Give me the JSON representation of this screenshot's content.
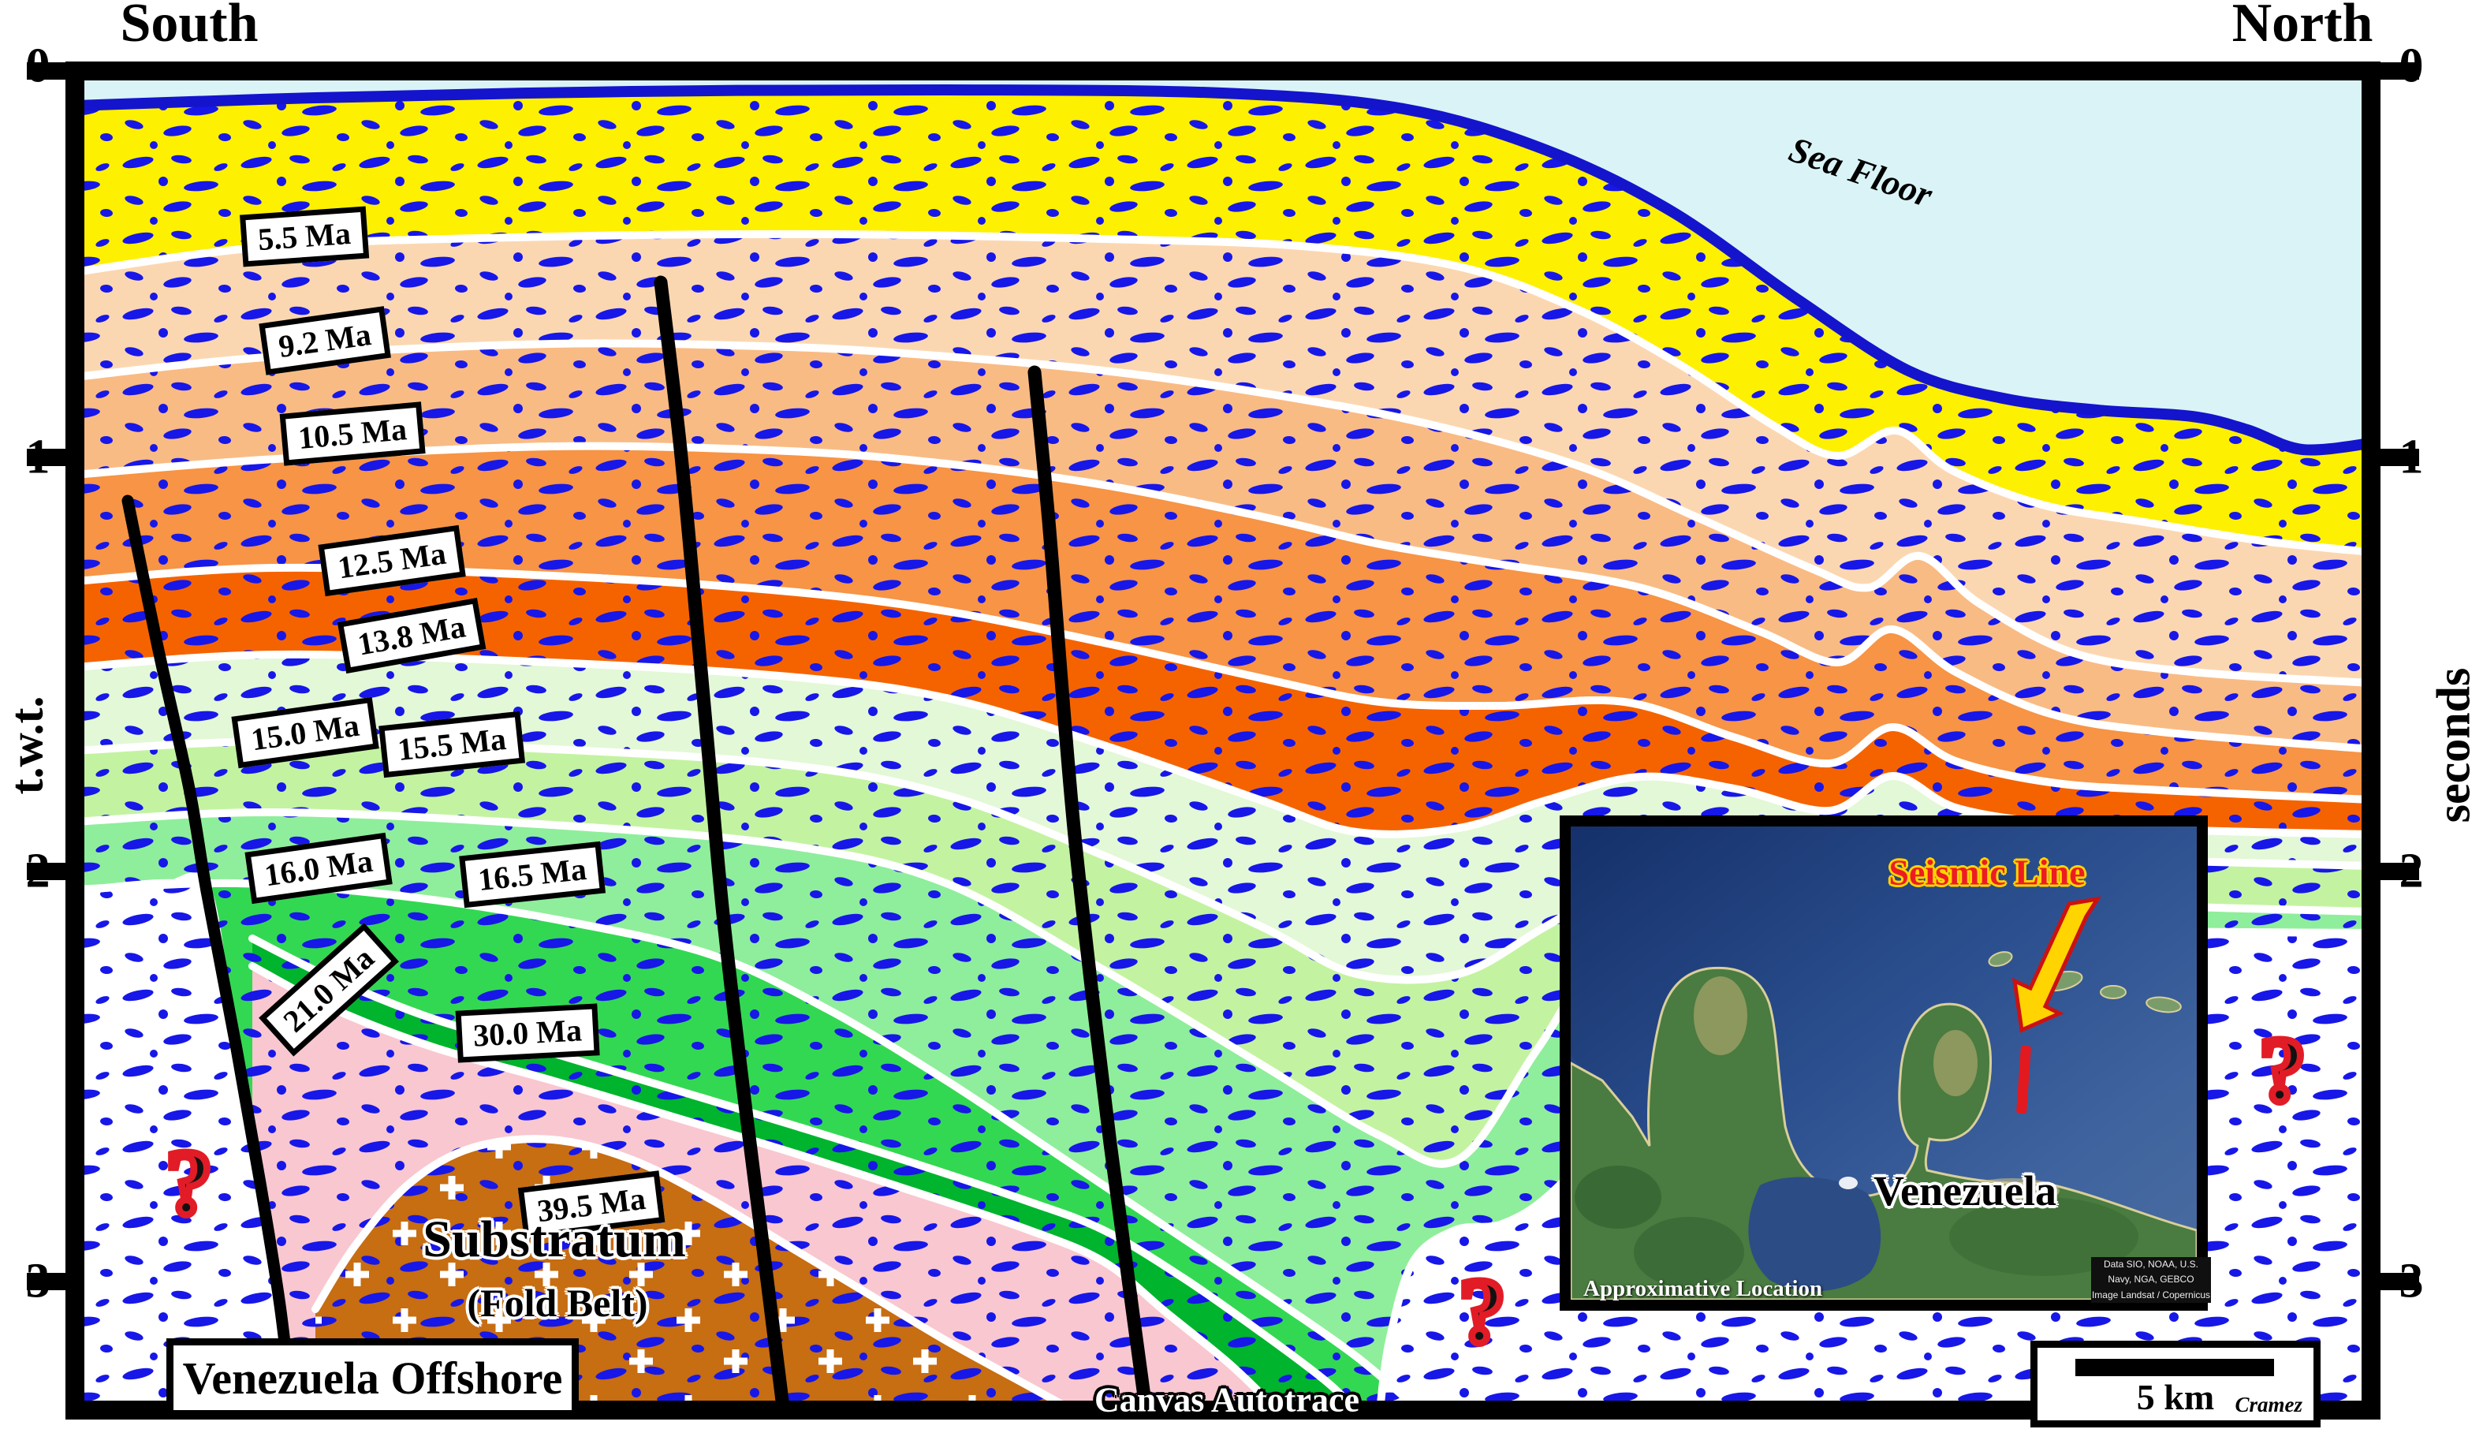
{
  "titles": {
    "left": "South",
    "right": "North"
  },
  "axis": {
    "ticks": [
      "0",
      "1",
      "2",
      "3"
    ],
    "left_label": "t.w.t.",
    "right_label": "seconds"
  },
  "sea_floor_label": "Sea Floor",
  "horizons": [
    {
      "text": "5.5 Ma"
    },
    {
      "text": "9.2 Ma"
    },
    {
      "text": "10.5 Ma"
    },
    {
      "text": "12.5 Ma"
    },
    {
      "text": "13.8 Ma"
    },
    {
      "text": "15.0 Ma"
    },
    {
      "text": "15.5 Ma"
    },
    {
      "text": "16.0 Ma"
    },
    {
      "text": "16.5 Ma"
    },
    {
      "text": "21.0 Ma"
    },
    {
      "text": "30.0 Ma"
    },
    {
      "text": "39.5 Ma"
    }
  ],
  "substratum": {
    "line1": "Substratum",
    "line2": "(Fold Belt)"
  },
  "region_label": "Venezuela Offshore",
  "watermark": "Canvas Autotrace",
  "question_mark": "?",
  "scalebar": {
    "distance": "5 km",
    "credit": "Cramez"
  },
  "inset": {
    "seismic_line": "Seismic Line",
    "country": "Venezuela",
    "location_note": "Approximative Location",
    "attribution_line1": "Data SIO, NOAA, U.S. Navy, NGA, GEBCO",
    "attribution_line2": "Image Landsat / Copernicus"
  },
  "colors": {
    "water": "#daf3f6",
    "yellow": "#fdf000",
    "peach": "#fbd7b1",
    "light_orange": "#f9bb84",
    "orange": "#f79445",
    "dark_orange": "#f56300",
    "green_pale": "#e3f8d6",
    "green_light": "#c3f3a1",
    "green_mid": "#8fee9b",
    "green_bright": "#33d852",
    "green_dark": "#00b42e",
    "pink": "#f9c7d0",
    "brown": "#c76d12",
    "white": "#ffffff",
    "speckle_blue": "#1717e8",
    "seafloor_line": "#1414cc",
    "fault_black": "#000000",
    "accent_red": "#e11c27",
    "arrow_yellow": "#ffd400",
    "ocean_blue": "#2b4f8e",
    "land_green": "#4a7b40"
  }
}
